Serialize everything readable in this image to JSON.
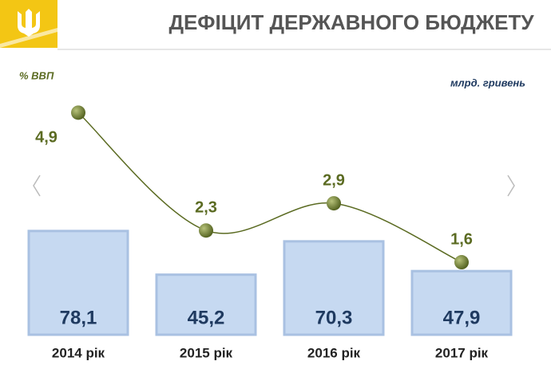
{
  "chart_data": {
    "type": "combo",
    "title": "ДЕФІЦИТ ДЕРЖАВНОГО БЮДЖЕТУ",
    "y_label": "млрд. гривень",
    "y2_label": "% ВВП",
    "categories": [
      "2014 рік",
      "2015 рік",
      "2016 рік",
      "2017 рік"
    ],
    "ylim": [
      0,
      174
    ],
    "y2lim": [
      0,
      5.1
    ],
    "series": [
      {
        "type": "bar",
        "color": "#c6d9f1",
        "values": [
          78.1,
          45.2,
          70.3,
          47.9
        ],
        "value_labels": [
          "78,1",
          "45,2",
          "70,3",
          "47,9"
        ]
      },
      {
        "type": "line",
        "axis": "y2",
        "color": "#5b6b22",
        "values": [
          4.9,
          2.3,
          2.9,
          1.6
        ],
        "value_labels": [
          "4,9",
          "2,3",
          "2,9",
          "1,6"
        ]
      }
    ]
  }
}
